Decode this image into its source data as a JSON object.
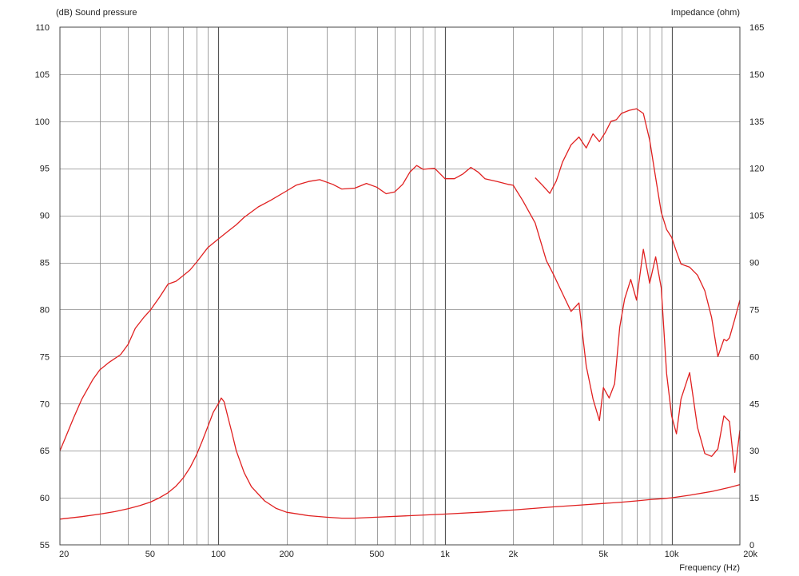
{
  "chart_data": {
    "type": "line",
    "x_scale": "log",
    "xlim": [
      20,
      20000
    ],
    "x_ticks": [
      20,
      50,
      100,
      200,
      500,
      1000,
      2000,
      5000,
      10000,
      20000
    ],
    "x_tick_labels": [
      "20",
      "50",
      "100",
      "200",
      "500",
      "1k",
      "2k",
      "5k",
      "10k",
      "20k"
    ],
    "xlabel": "Frequency  (Hz)",
    "y_left": {
      "label": "(dB)  Sound pressure",
      "lim": [
        55,
        110
      ],
      "ticks": [
        55,
        60,
        65,
        70,
        75,
        80,
        85,
        90,
        95,
        100,
        105,
        110
      ]
    },
    "y_right": {
      "label": "Impedance  (ohm)",
      "lim": [
        0,
        165
      ],
      "ticks": [
        0,
        15,
        30,
        45,
        60,
        75,
        90,
        105,
        120,
        135,
        150,
        165
      ]
    },
    "grid": true,
    "line_color": "#e02020",
    "series": [
      {
        "axis": "left",
        "x": [
          20,
          21,
          23,
          25,
          28,
          30,
          33,
          37,
          40,
          43,
          47,
          50,
          55,
          60,
          65,
          70,
          75,
          80,
          90,
          100,
          110,
          120,
          130,
          150,
          170,
          200,
          220,
          250,
          280,
          320,
          350,
          400,
          450,
          500,
          550,
          600,
          650,
          700,
          750,
          800,
          900,
          1000,
          1100,
          1200,
          1300,
          1400,
          1500,
          1700,
          1900,
          2000,
          2200,
          2500,
          2800,
          3000,
          3300,
          3600,
          3900,
          4200,
          4500,
          4800,
          5000,
          5300,
          5600,
          5900,
          6200,
          6600,
          7000,
          7500,
          8000,
          8500,
          9000,
          9500,
          10000,
          10500,
          11000,
          12000,
          13000,
          14000,
          15000,
          16000,
          17000,
          18000,
          19000,
          20000
        ],
        "y": [
          65.0,
          66.2,
          68.5,
          70.5,
          72.6,
          73.6,
          74.4,
          75.2,
          76.3,
          78.0,
          79.2,
          79.9,
          81.3,
          82.7,
          83.0,
          83.6,
          84.2,
          85.0,
          86.6,
          87.5,
          88.3,
          89.0,
          89.8,
          90.9,
          91.6,
          92.6,
          93.2,
          93.6,
          93.8,
          93.3,
          92.8,
          92.9,
          93.4,
          93.0,
          92.3,
          92.5,
          93.3,
          94.6,
          95.3,
          94.9,
          95.0,
          93.9,
          93.9,
          94.4,
          95.1,
          94.6,
          93.9,
          93.6,
          93.3,
          93.2,
          91.6,
          89.2,
          85.2,
          83.8,
          81.7,
          79.8,
          80.7,
          74.0,
          70.5,
          68.2,
          71.7,
          70.6,
          72.1,
          78.1,
          81.1,
          83.2,
          81.0,
          86.4,
          82.8,
          85.6,
          82.3,
          73.2,
          68.7,
          66.8,
          70.5,
          73.3,
          67.5,
          64.7,
          64.4,
          65.2,
          68.7,
          68.1,
          62.7,
          67.2
        ]
      },
      {
        "axis": "right",
        "x": [
          20,
          25,
          30,
          35,
          40,
          45,
          50,
          55,
          60,
          65,
          70,
          75,
          80,
          85,
          90,
          95,
          100,
          103,
          106,
          110,
          115,
          120,
          130,
          140,
          160,
          180,
          200,
          250,
          300,
          350,
          400,
          500,
          700,
          1000,
          1500,
          2000,
          3000,
          4000,
          5000,
          6000,
          7000,
          8000,
          9000,
          10000,
          12000,
          15000,
          18000,
          20000
        ],
        "y": [
          8.2,
          9.0,
          9.8,
          10.6,
          11.5,
          12.5,
          13.6,
          15.0,
          16.6,
          18.7,
          21.3,
          24.6,
          28.6,
          33.2,
          37.8,
          42.3,
          45.0,
          46.8,
          45.6,
          41.0,
          35.5,
          30.0,
          23.0,
          18.5,
          14.0,
          11.6,
          10.4,
          9.3,
          8.8,
          8.5,
          8.5,
          8.8,
          9.3,
          9.8,
          10.5,
          11.1,
          12.1,
          12.7,
          13.2,
          13.6,
          14.0,
          14.4,
          14.7,
          15.0,
          15.8,
          17.0,
          18.3,
          19.2
        ]
      },
      {
        "axis": "right",
        "x": [
          2500,
          2700,
          2900,
          3100,
          3300,
          3600,
          3900,
          4200,
          4500,
          4800,
          5100,
          5400,
          5700,
          6000,
          6500,
          7000,
          7500,
          8000,
          8500,
          9000,
          9500,
          10000,
          10500,
          11000,
          12000,
          13000,
          14000,
          15000,
          16000,
          17000,
          17500,
          18000,
          19000,
          20000
        ],
        "y": [
          117.0,
          114.5,
          112.0,
          116.0,
          122.0,
          127.5,
          130.0,
          126.5,
          131.0,
          128.5,
          131.5,
          135.0,
          135.5,
          137.5,
          138.5,
          139.0,
          137.5,
          129.0,
          117.0,
          106.0,
          100.5,
          98.0,
          93.5,
          89.5,
          88.5,
          86.0,
          81.0,
          72.5,
          60.0,
          65.5,
          65.0,
          66.0,
          72.0,
          78.0
        ]
      }
    ]
  }
}
